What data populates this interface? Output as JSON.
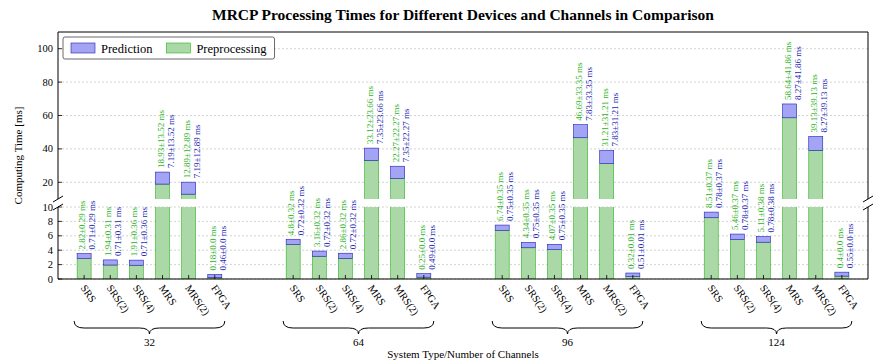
{
  "chart_data": {
    "type": "bar",
    "title": "MRCP Processing Times for Different Devices and Channels in Comparison",
    "x_label": "System Type/Number of Channels",
    "y_label": "Computing Time [ms]",
    "categories": [
      "SRS",
      "SRS(2)",
      "SRS(4)",
      "MRS",
      "MRS(2)",
      "FPGA",
      "SRS",
      "SRS(2)",
      "SRS(4)",
      "MRS",
      "MRS(2)",
      "FPGA",
      "SRS",
      "SRS(2)",
      "SRS(4)",
      "MRS",
      "MRS(2)",
      "FPGA",
      "SRS",
      "SRS(2)",
      "SRS(4)",
      "MRS",
      "MRS(2)",
      "FPGA"
    ],
    "group_labels": [
      "32",
      "64",
      "96",
      "124"
    ],
    "series": [
      {
        "name": "Preprocessing",
        "color": "#aad8a6",
        "values": [
          2.82,
          1.94,
          1.91,
          18.93,
          12.89,
          0.18,
          4.8,
          3.16,
          2.86,
          33.12,
          22.27,
          0.25,
          6.74,
          4.34,
          4.07,
          46.69,
          31.21,
          0.32,
          8.51,
          5.46,
          5.11,
          58.64,
          39.13,
          0.4
        ],
        "value_labels": [
          "2.82±0.29 ms",
          "1.94±0.31 ms",
          "1.91±0.36 ms",
          "18.93±13.52 ms",
          "12.89±12.89 ms",
          "0.18±0.0 ms",
          "4.8±0.32 ms",
          "3.16±0.32 ms",
          "2.86±0.32 ms",
          "33.12±23.66 ms",
          "22.27±22.27 ms",
          "0.25±0.0 ms",
          "6.74±0.35 ms",
          "4.34±0.35 ms",
          "4.07±0.35 ms",
          "46.69±33.35 ms",
          "31.21±31.21 ms",
          "0.32±0.01 ms",
          "8.51±0.37 ms",
          "5.46±0.37 ms",
          "5.11±0.38 ms",
          "58.64±41.86 ms",
          "39.13±39.13 ms",
          "0.4±0.0 ms"
        ]
      },
      {
        "name": "Prediction",
        "color": "#a4a4f4",
        "values": [
          0.71,
          0.71,
          0.71,
          7.19,
          7.19,
          0.46,
          0.72,
          0.72,
          0.72,
          7.35,
          7.35,
          0.49,
          0.75,
          0.75,
          0.75,
          7.83,
          7.83,
          0.51,
          0.78,
          0.78,
          0.78,
          8.27,
          8.27,
          0.55
        ],
        "value_labels": [
          "0.71±0.29 ms",
          "0.71±0.31 ms",
          "0.71±0.36 ms",
          "7.19±13.52 ms",
          "7.19±12.89 ms",
          "0.46±0.0 ms",
          "0.72±0.32 ms",
          "0.72±0.32 ms",
          "0.72±0.32 ms",
          "7.35±23.66 ms",
          "7.35±22.27 ms",
          "0.49±0.0 ms",
          "0.75±0.35 ms",
          "0.75±0.35 ms",
          "0.75±0.35 ms",
          "7.83±33.35 ms",
          "7.83±31.21 ms",
          "0.51±0.01 ms",
          "0.78±0.37 ms",
          "0.78±0.37 ms",
          "0.78±0.38 ms",
          "8.27±41.86 ms",
          "8.27±39.13 ms",
          "0.55±0.0 ms"
        ]
      }
    ],
    "ylim": [
      0,
      110
    ],
    "yticks": [
      0,
      2,
      4,
      6,
      8,
      10,
      20,
      40,
      60,
      80,
      100
    ],
    "axis_break": 10,
    "stacked": true,
    "data_labels": true,
    "grid": true,
    "legend": "upper left"
  }
}
